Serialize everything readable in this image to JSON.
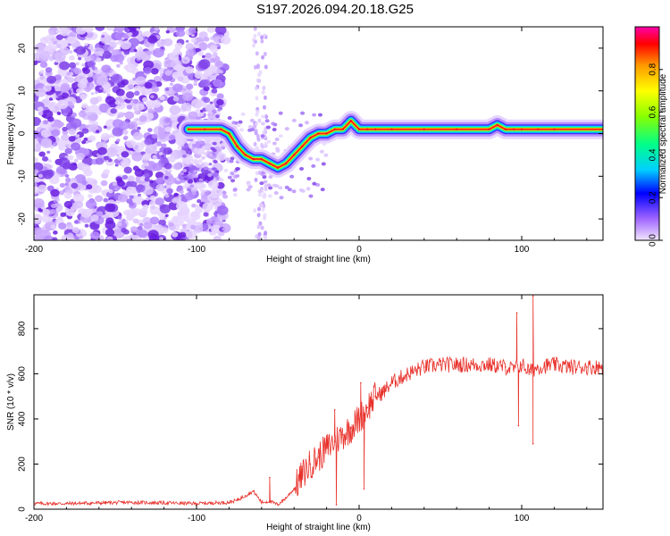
{
  "figure_title": "S197.2026.094.20.18.G25",
  "colors": {
    "snr_line": "#e8302a",
    "waterfall_scatter": "#8a2be2",
    "ridge_core": "#e8102a"
  },
  "chart_data": [
    {
      "type": "heatmap",
      "title": "",
      "xlabel": "Height of straight line (km)",
      "ylabel": "Frequency (Hz)",
      "xlim": [
        -200,
        150
      ],
      "ylim": [
        -25,
        25
      ],
      "xticks": [
        -200,
        -100,
        0,
        100
      ],
      "yticks": [
        -20,
        -10,
        0,
        10,
        20
      ],
      "ridge": {
        "x": [
          -105,
          -95,
          -85,
          -80,
          -75,
          -70,
          -65,
          -60,
          -55,
          -50,
          -45,
          -40,
          -35,
          -30,
          -25,
          -20,
          -15,
          -10,
          -5,
          0,
          5,
          10,
          20,
          40,
          60,
          80,
          85,
          90,
          95,
          100,
          110,
          120,
          150
        ],
        "y": [
          1,
          1,
          1,
          0,
          -3,
          -5,
          -6,
          -6,
          -7,
          -8,
          -7,
          -5,
          -3,
          -1,
          0,
          0,
          1,
          1,
          3,
          1,
          1,
          1,
          1,
          1,
          1,
          1,
          2,
          1,
          1,
          1,
          1,
          1,
          1
        ]
      },
      "colorbar": {
        "label": "Normalized spectral amplitude",
        "ticks": [
          0.0,
          0.2,
          0.4,
          0.6,
          0.8
        ],
        "tick_labels": [
          "0.0",
          "0.2",
          "0.4",
          "0.6",
          "0.8"
        ],
        "range": [
          0,
          1
        ]
      }
    },
    {
      "type": "line",
      "title": "",
      "xlabel": "Height of straight line (km)",
      "ylabel": "SNR (10 * v/v)",
      "xlim": [
        -200,
        150
      ],
      "ylim": [
        0,
        950
      ],
      "xticks": [
        -200,
        -100,
        0,
        100
      ],
      "yticks": [
        0,
        200,
        400,
        600,
        800
      ],
      "series": [
        {
          "name": "SNR",
          "x": [
            -200,
            -180,
            -160,
            -140,
            -120,
            -100,
            -90,
            -80,
            -75,
            -70,
            -65,
            -60,
            -55,
            -50,
            -45,
            -40,
            -35,
            -30,
            -25,
            -20,
            -15,
            -10,
            -5,
            0,
            5,
            10,
            15,
            20,
            25,
            30,
            40,
            50,
            60,
            70,
            80,
            90,
            95,
            100,
            105,
            110,
            120,
            130,
            140,
            150
          ],
          "y": [
            25,
            25,
            28,
            30,
            28,
            25,
            28,
            30,
            40,
            60,
            80,
            30,
            35,
            20,
            50,
            90,
            150,
            200,
            230,
            270,
            300,
            330,
            360,
            400,
            450,
            500,
            520,
            560,
            580,
            600,
            630,
            640,
            640,
            640,
            640,
            630,
            620,
            640,
            610,
            630,
            640,
            630,
            630,
            630
          ]
        }
      ],
      "spikes": [
        {
          "x": -55,
          "y": 140
        },
        {
          "x": -15,
          "y": 440
        },
        {
          "x": -14,
          "y": 20
        },
        {
          "x": 1,
          "y": 560
        },
        {
          "x": 3,
          "y": 90
        },
        {
          "x": 97,
          "y": 870
        },
        {
          "x": 98,
          "y": 370
        },
        {
          "x": 107,
          "y": 945
        },
        {
          "x": 107,
          "y": 290
        }
      ]
    }
  ]
}
